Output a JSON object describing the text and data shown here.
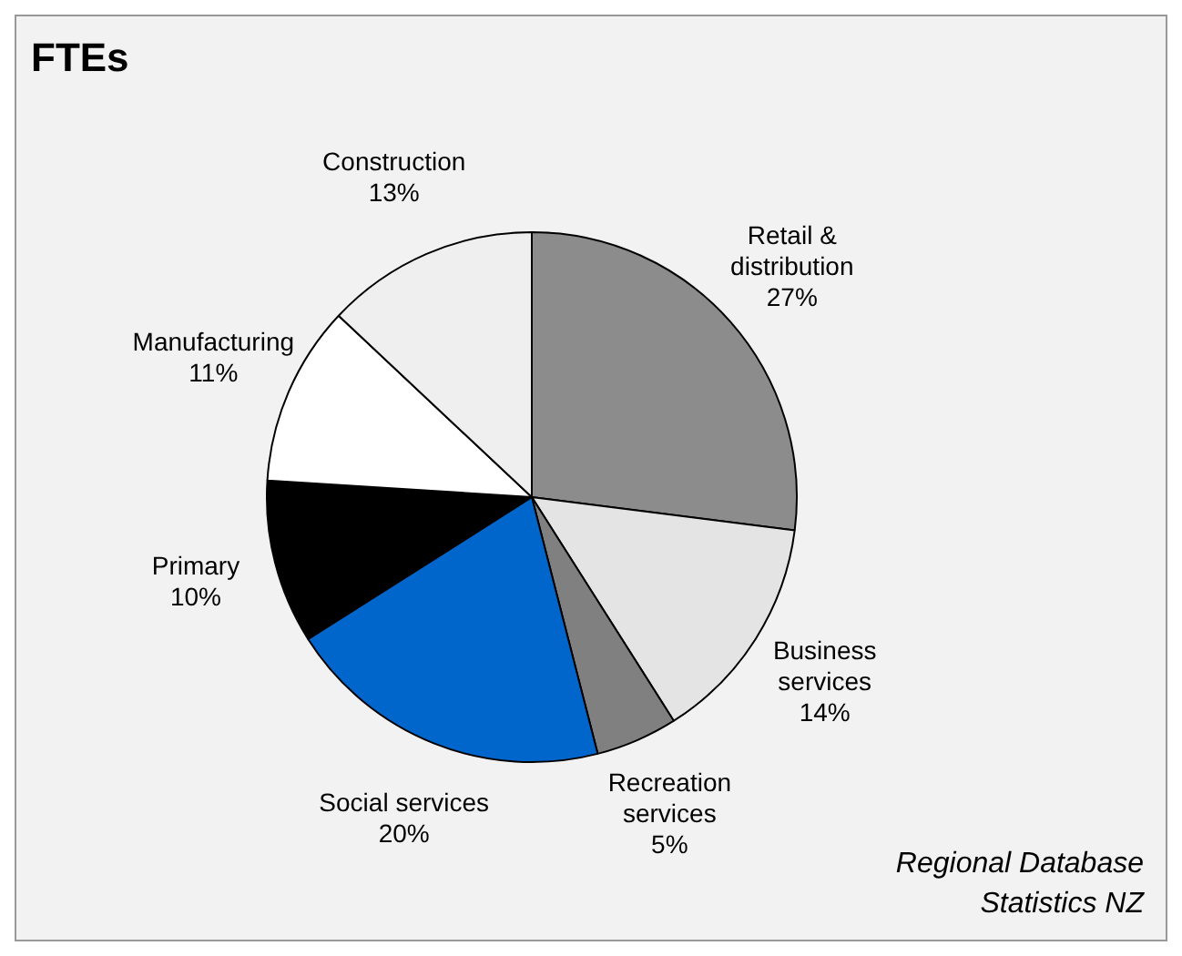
{
  "chart_data": {
    "type": "pie",
    "title": "FTEs",
    "categories": [
      "Retail & distribution",
      "Business services",
      "Recreation services",
      "Social services",
      "Primary",
      "Manufacturing",
      "Construction"
    ],
    "values": [
      27,
      14,
      5,
      20,
      10,
      11,
      13
    ],
    "value_labels": [
      "27%",
      "14%",
      "5%",
      "20%",
      "10%",
      "11%",
      "13%"
    ],
    "colors": [
      "#8c8c8c",
      "#e4e4e4",
      "#808080",
      "#0066cc",
      "#000000",
      "#ffffff",
      "#efefef"
    ],
    "legend": false,
    "annotations": [
      "Regional Database",
      "Statistics NZ"
    ]
  }
}
